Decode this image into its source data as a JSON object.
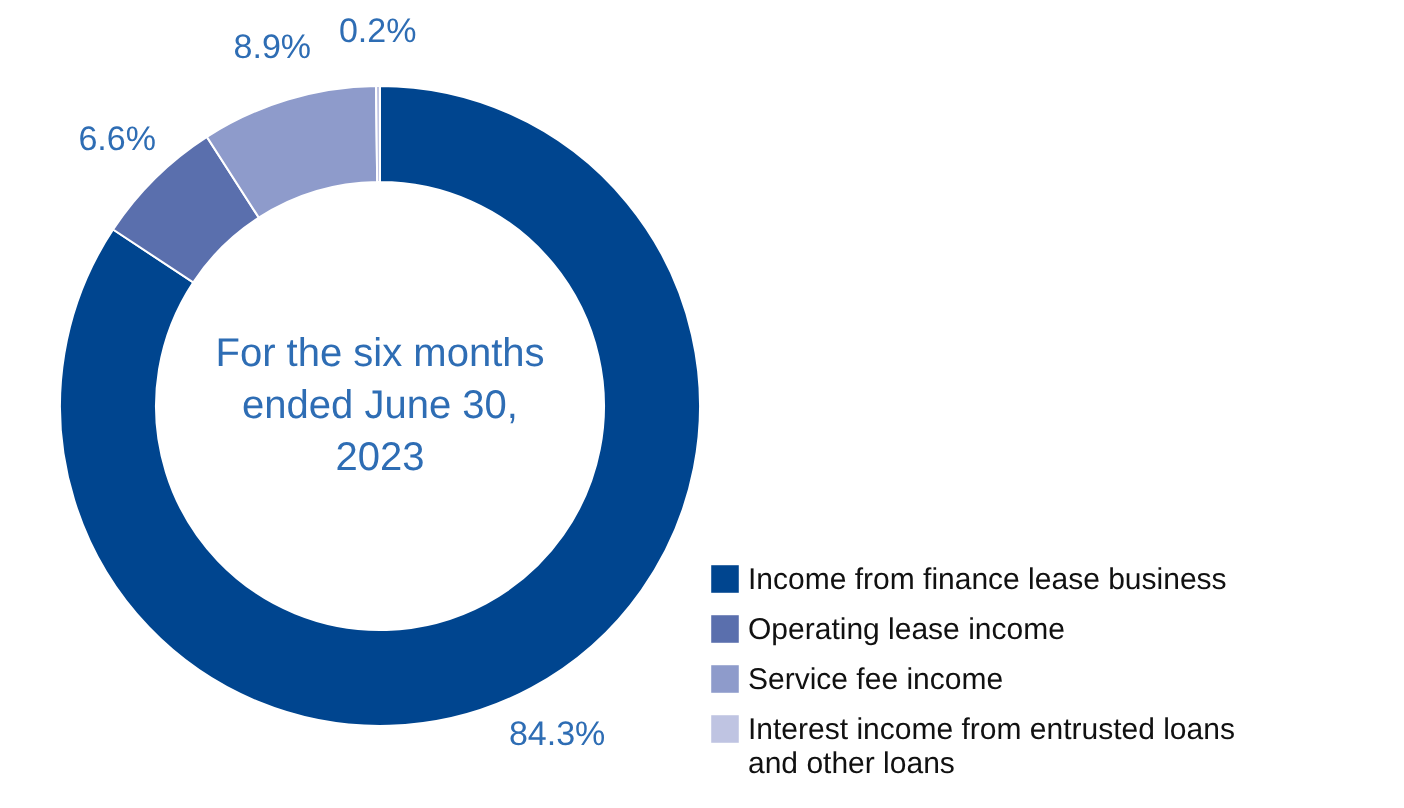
{
  "chart_data": {
    "type": "donut",
    "categories": [
      "Income from finance lease business",
      "Operating lease income",
      "Service fee income",
      "Interest income from entrusted loans and other loans"
    ],
    "values": [
      84.3,
      6.6,
      8.9,
      0.2
    ],
    "value_labels": [
      "84.3%",
      "6.6%",
      "8.9%",
      "0.2%"
    ],
    "colors": [
      "#00458f",
      "#5a6fad",
      "#8e9bcb",
      "#bfc4e2"
    ],
    "annotations": [
      "For the six months ended June 30, 2023"
    ],
    "legend": "bottom right"
  }
}
